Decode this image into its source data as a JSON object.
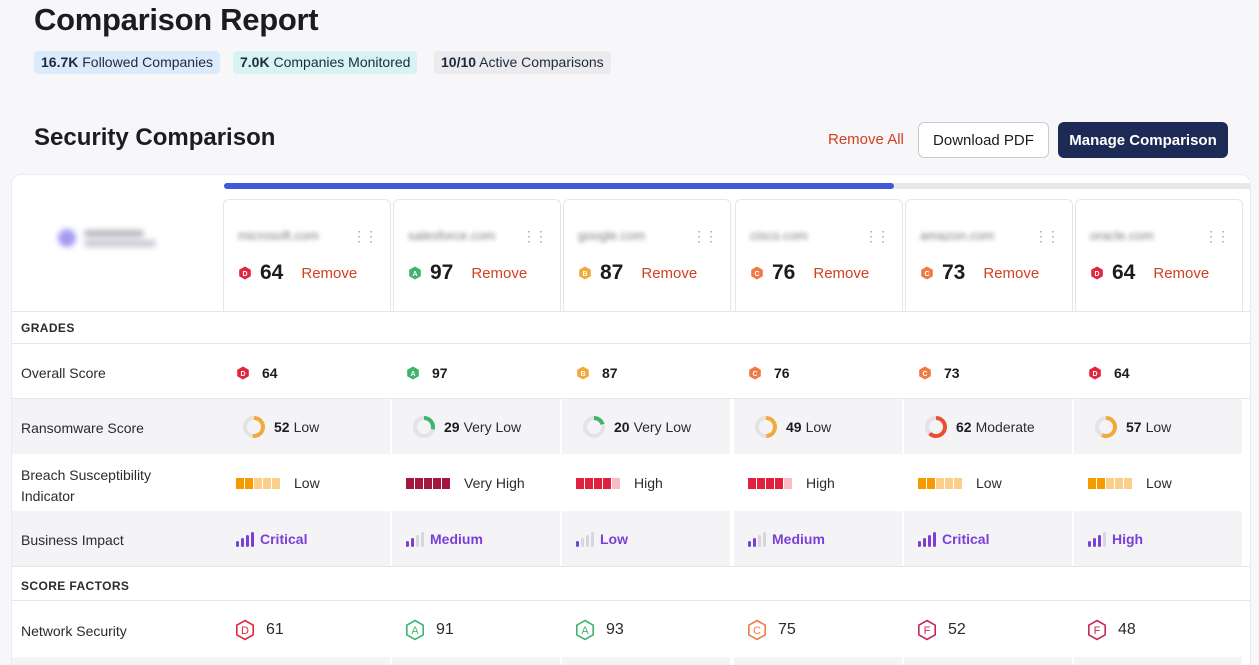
{
  "header": {
    "title": "Comparison Report",
    "pills": [
      {
        "value": "16.7K",
        "label": "Followed Companies"
      },
      {
        "value": "7.0K",
        "label": "Companies Monitored"
      },
      {
        "value": "10/10",
        "label": "Active Comparisons"
      }
    ]
  },
  "section": {
    "title": "Security Comparison",
    "remove_all": "Remove All",
    "download_pdf": "Download PDF",
    "manage": "Manage Comparison"
  },
  "labels": {
    "grades": "GRADES",
    "overall_score": "Overall Score",
    "ransomware_score": "Ransomware Score",
    "breach_line1": "Breach Susceptibility",
    "breach_line2": "Indicator",
    "business_impact": "Business Impact",
    "score_factors": "SCORE FACTORS",
    "network_security": "Network Security",
    "remove": "Remove"
  },
  "colors": {
    "A": "#3fb46b",
    "B": "#f2a93b",
    "C": "#ef7a45",
    "D": "#e3263f",
    "F": "#c42855"
  },
  "companies": [
    {
      "domain": "microsoft.com",
      "grade": "D",
      "score": "64",
      "ransomware": {
        "value": "52",
        "label": "Low",
        "level": 0.52
      },
      "breach": {
        "label": "Low",
        "level": 2,
        "scale": "orange"
      },
      "impact": {
        "label": "Critical",
        "level": 4
      },
      "network": {
        "grade": "D",
        "score": "61"
      }
    },
    {
      "domain": "salesforce.com",
      "grade": "A",
      "score": "97",
      "ransomware": {
        "value": "29",
        "label": "Very Low",
        "level": 0.29
      },
      "breach": {
        "label": "Very High",
        "level": 5,
        "scale": "maroon"
      },
      "impact": {
        "label": "Medium",
        "level": 2
      },
      "network": {
        "grade": "A",
        "score": "91"
      }
    },
    {
      "domain": "google.com",
      "grade": "B",
      "score": "87",
      "ransomware": {
        "value": "20",
        "label": "Very Low",
        "level": 0.2
      },
      "breach": {
        "label": "High",
        "level": 4,
        "scale": "red"
      },
      "impact": {
        "label": "Low",
        "level": 1
      },
      "network": {
        "grade": "A",
        "score": "93"
      }
    },
    {
      "domain": "cisco.com",
      "grade": "C",
      "score": "76",
      "ransomware": {
        "value": "49",
        "label": "Low",
        "level": 0.49
      },
      "breach": {
        "label": "High",
        "level": 4,
        "scale": "red"
      },
      "impact": {
        "label": "Medium",
        "level": 2
      },
      "network": {
        "grade": "C",
        "score": "75"
      }
    },
    {
      "domain": "amazon.com",
      "grade": "C",
      "score": "73",
      "ransomware": {
        "value": "62",
        "label": "Moderate",
        "level": 0.62
      },
      "breach": {
        "label": "Low",
        "level": 2,
        "scale": "orange"
      },
      "impact": {
        "label": "Critical",
        "level": 4
      },
      "network": {
        "grade": "F",
        "score": "52"
      }
    },
    {
      "domain": "oracle.com",
      "grade": "D",
      "score": "64",
      "ransomware": {
        "value": "57",
        "label": "Low",
        "level": 0.57
      },
      "breach": {
        "label": "Low",
        "level": 2,
        "scale": "orange"
      },
      "impact": {
        "label": "High",
        "level": 3
      },
      "network": {
        "grade": "F",
        "score": "48"
      }
    }
  ]
}
